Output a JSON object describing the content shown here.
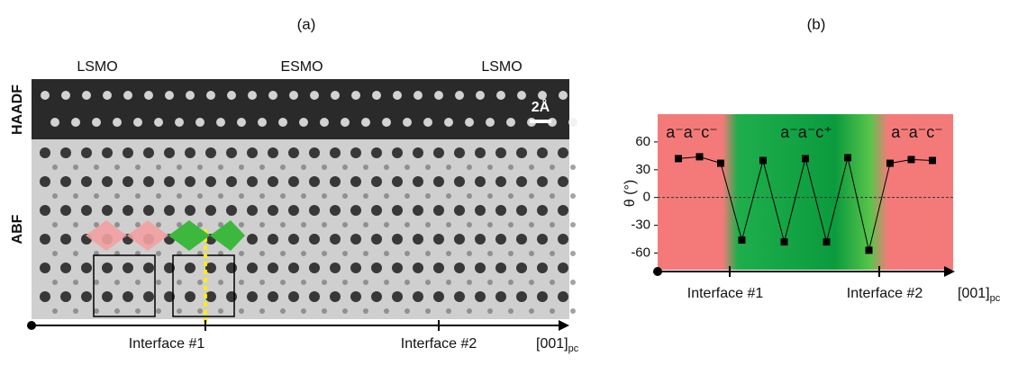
{
  "panel_labels": [
    "(a)",
    "(b)"
  ],
  "panel_a": {
    "layers": [
      "LSMO",
      "ESMO",
      "LSMO"
    ],
    "rows": [
      "HAADF",
      "ABF"
    ],
    "scale_bar": "2Å",
    "interfaces": [
      "Interface #1",
      "Interface #2"
    ],
    "axis_label": {
      "main": "[001]",
      "sub": "pc"
    }
  },
  "chart_data": {
    "type": "line",
    "y_label": "θ (°)",
    "categories": [
      null,
      null,
      null,
      null,
      null,
      null,
      null,
      null,
      null,
      null,
      null,
      null,
      null
    ],
    "series": [
      {
        "name": null,
        "color": "#000000",
        "values": [
          42,
          44,
          37,
          -46,
          40,
          -48,
          42,
          -48,
          43,
          -57,
          37,
          41,
          40
        ]
      }
    ],
    "ylim": [
      -78,
      90
    ],
    "yticks": [
      -60,
      -30,
      0,
      30,
      60
    ],
    "zero_line": true,
    "annotations": [
      "a⁻a⁻c⁻",
      "a⁻a⁻c⁺",
      "a⁻a⁻c⁻"
    ],
    "interfaces": [
      "Interface #1",
      "Interface #2"
    ],
    "x_label": {
      "main": "[001]",
      "sub": "pc"
    }
  }
}
